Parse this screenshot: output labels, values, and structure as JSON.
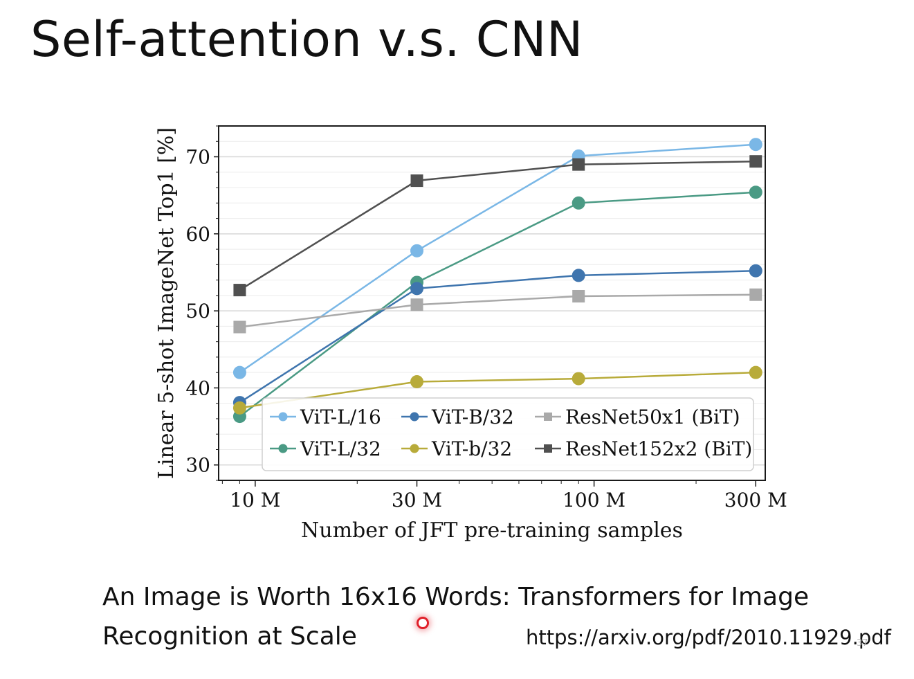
{
  "slide": {
    "title": "Self-attention v.s. CNN",
    "caption": "An Image is Worth 16x16 Words: Transformers for Image Recognition at Scale",
    "url": "https://arxiv.org/pdf/2010.11929.pdf",
    "slide_number": "37"
  },
  "chart_data": {
    "type": "line",
    "xlabel": "Number of JFT pre-training samples",
    "ylabel": "Linear 5-shot ImageNet Top1 [%]",
    "x_scale": "log",
    "categories": [
      "10 M",
      "30 M",
      "100 M",
      "300 M"
    ],
    "x": [
      9,
      30,
      90,
      300
    ],
    "xlim": [
      7.8,
      320
    ],
    "ylim": [
      28,
      74
    ],
    "y_ticks": [
      30,
      40,
      50,
      60,
      70
    ],
    "grid": true,
    "legend_position": "lower-right",
    "series": [
      {
        "name": "ViT-L/16",
        "color": "#7ab7e6",
        "marker": "circle",
        "values": [
          42.0,
          57.8,
          70.1,
          71.6
        ]
      },
      {
        "name": "ViT-L/32",
        "color": "#4a9a84",
        "marker": "circle",
        "values": [
          36.3,
          53.7,
          64.0,
          65.4
        ]
      },
      {
        "name": "ViT-B/32",
        "color": "#3f75ae",
        "marker": "circle",
        "values": [
          38.1,
          52.9,
          54.6,
          55.2
        ]
      },
      {
        "name": "ViT-b/32",
        "color": "#b8ab3a",
        "marker": "circle",
        "values": [
          37.4,
          40.8,
          41.2,
          42.0
        ]
      },
      {
        "name": "ResNet50x1 (BiT)",
        "color": "#a9a9a9",
        "marker": "square",
        "values": [
          47.9,
          50.8,
          51.9,
          52.1
        ]
      },
      {
        "name": "ResNet152x2 (BiT)",
        "color": "#505050",
        "marker": "square",
        "values": [
          52.7,
          66.9,
          69.0,
          69.4
        ]
      }
    ]
  }
}
